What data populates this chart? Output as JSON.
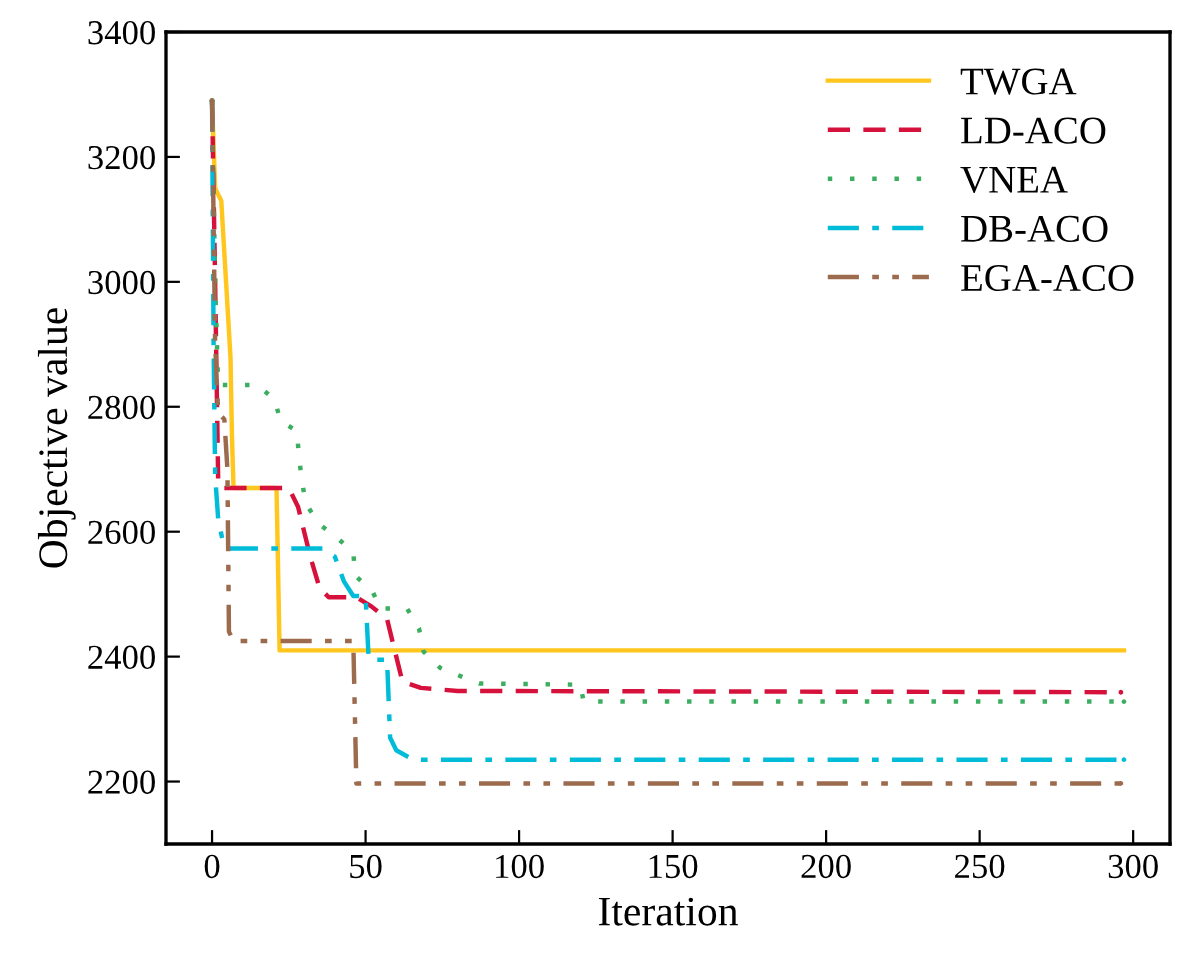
{
  "chart_data": {
    "type": "line",
    "xlabel": "Iteration",
    "ylabel": "Objective value",
    "xlim": [
      -15,
      312
    ],
    "ylim": [
      2100,
      3400
    ],
    "xticks": [
      0,
      50,
      100,
      150,
      200,
      250,
      300
    ],
    "yticks": [
      2200,
      2400,
      2600,
      2800,
      3000,
      3200,
      3400
    ],
    "grid": false,
    "legend": "top right",
    "marker": "none",
    "series": [
      {
        "name": "TWGA",
        "color": "#ffc61e",
        "line_style": "solid",
        "x": [
          0,
          1,
          3,
          6,
          6.5,
          7,
          21,
          22,
          297
        ],
        "values": [
          3290,
          3150,
          3130,
          2880,
          2750,
          2670,
          2670,
          2410,
          2410
        ]
      },
      {
        "name": "LD-ACO",
        "color": "#d6123c",
        "line_style": "dashed",
        "x": [
          0,
          1,
          2,
          3,
          25,
          28,
          32,
          35,
          38,
          47,
          52,
          57,
          60,
          62,
          68,
          80,
          296
        ],
        "values": [
          3290,
          3000,
          2680,
          2670,
          2670,
          2640,
          2560,
          2510,
          2495,
          2495,
          2480,
          2460,
          2400,
          2360,
          2350,
          2345,
          2343
        ]
      },
      {
        "name": "VNEA",
        "color": "#3cae60",
        "line_style": "dotted",
        "x": [
          0,
          1,
          2,
          14.5,
          20.4,
          22.2,
          27.6,
          28.3,
          29.1,
          30.5,
          35,
          41,
          46,
          46.6,
          52.3,
          54.8,
          63.5,
          67.4,
          68.9,
          74.3,
          79.7,
          87,
          120,
          121,
          297
        ],
        "values": [
          3290,
          3000,
          2835,
          2835,
          2812,
          2778,
          2761,
          2722,
          2687,
          2645,
          2612,
          2589,
          2567,
          2530,
          2504,
          2477,
          2477,
          2445,
          2408,
          2382,
          2371,
          2357,
          2355,
          2328,
          2328
        ]
      },
      {
        "name": "DB-ACO",
        "color": "#00bcd8",
        "line_style": "dashdot",
        "x": [
          0,
          0.5,
          1,
          2,
          4,
          36,
          40,
          43,
          46,
          50,
          51,
          53,
          57,
          58,
          60,
          65.5,
          297
        ],
        "values": [
          3290,
          2900,
          2690,
          2620,
          2573,
          2573,
          2560,
          2520,
          2497,
          2497,
          2397,
          2395,
          2395,
          2270,
          2250,
          2235,
          2235
        ]
      },
      {
        "name": "EGA-ACO",
        "color": "#9c6b4e",
        "line_style": "dashdotdot",
        "x": [
          0,
          1,
          2,
          4,
          5,
          5.5,
          7,
          46,
          47,
          296
        ],
        "values": [
          3290,
          2900,
          2790,
          2780,
          2700,
          2440,
          2425,
          2425,
          2197,
          2197
        ]
      }
    ]
  }
}
